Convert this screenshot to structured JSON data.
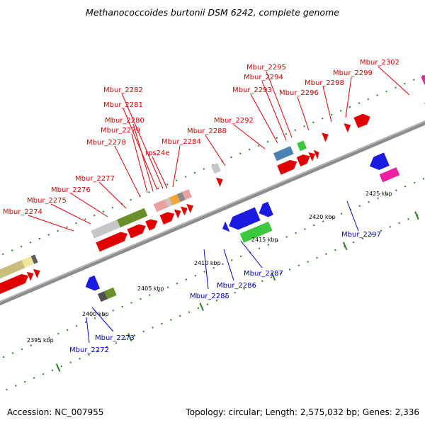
{
  "title": "Methanococcoides burtonii DSM 6242, complete genome",
  "footer": {
    "accession": "Accession: NC_007955",
    "summary": "Topology: circular; Length: 2,575,032 bp; Genes: 2,336"
  },
  "colors": {
    "forward_label": "#e00000",
    "reverse_label": "#0000cc",
    "backbone": "#8c8c8c",
    "tick": "#2a7d2a"
  },
  "scale": [
    "2395 kbp",
    "2400 kbp",
    "2405 kbp",
    "2410 kbp",
    "2415 kbp",
    "2420 kbp",
    "2425 kbp"
  ],
  "forward_labels": [
    "Mbur_2274",
    "Mbur_2275",
    "Mbur_2276",
    "Mbur_2277",
    "Mbur_2278",
    "Mbur_2279",
    "Mbur_2280",
    "Mbur_2281",
    "Mbur_2282",
    "rps24e",
    "Mbur_2284",
    "Mbur_2288",
    "Mbur_2292",
    "Mbur_2293",
    "Mbur_2294",
    "Mbur_2295",
    "Mbur_2296",
    "Mbur_2298",
    "Mbur_2299",
    "Mbur_2302"
  ],
  "reverse_labels": [
    "Mbur_2272",
    "Mbur_2273",
    "Mbur_2285",
    "Mbur_2286",
    "Mbur_2287",
    "Mbur_2297"
  ]
}
